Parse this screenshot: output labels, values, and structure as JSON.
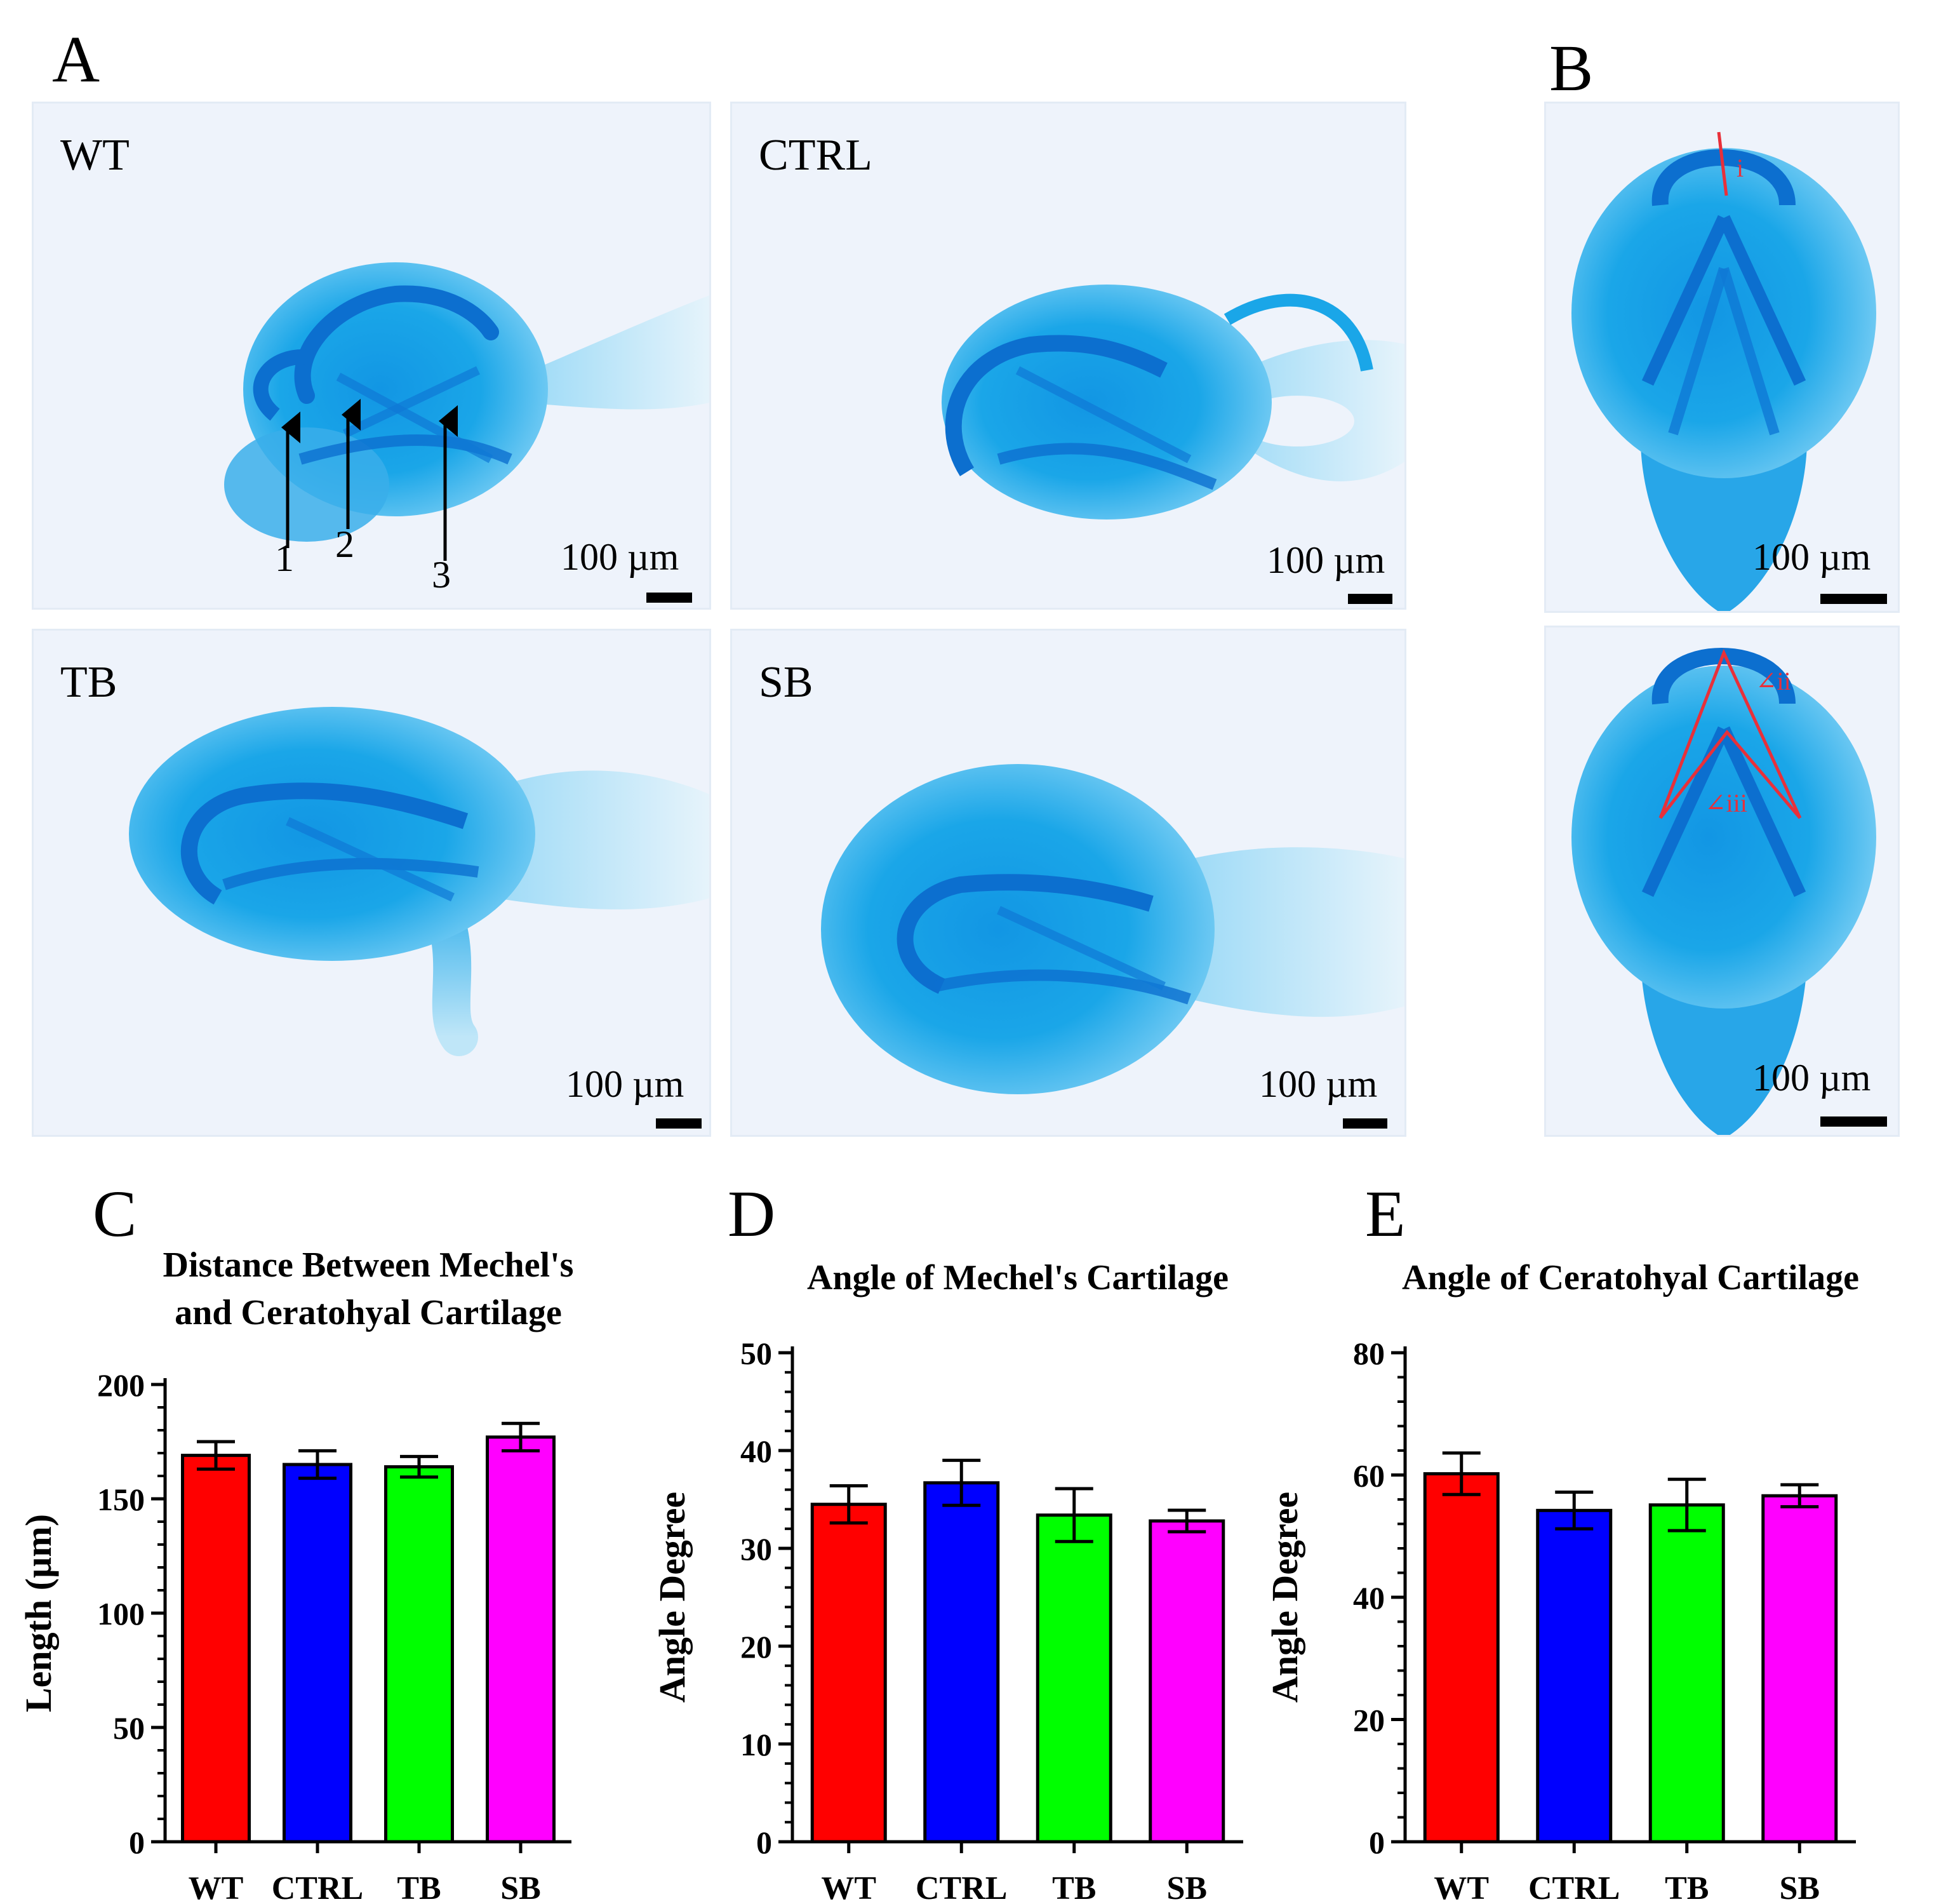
{
  "panels": {
    "A": "A",
    "B": "B",
    "C": "C",
    "D": "D",
    "E": "E"
  },
  "photos": {
    "wt": {
      "label": "WT",
      "scale": "100 µm"
    },
    "ctrl": {
      "label": "CTRL",
      "scale": "100 µm"
    },
    "tb": {
      "label": "TB",
      "scale": "100 µm"
    },
    "sb": {
      "label": "SB",
      "scale": "100 µm"
    },
    "b_top": {
      "scale": "100 µm",
      "mark": "i"
    },
    "b_bottom": {
      "scale": "100 µm",
      "mark_ii": "∠ii",
      "mark_iii": "∠iii"
    }
  },
  "arrows": [
    "1",
    "2",
    "3"
  ],
  "colors": {
    "cartilage": "#1aa6e8",
    "cartilage_dark": "#0f79d6",
    "WT": "#ff0000",
    "CTRL": "#0000ff",
    "TB": "#00ff00",
    "SB": "#ff00ff",
    "annotation": "#e8303a"
  },
  "chart_data": [
    {
      "id": "C",
      "type": "bar",
      "title": [
        "Distance Between Mechel's",
        "and Ceratohyal Cartilage"
      ],
      "xlabel": "",
      "ylabel": "Length (µm)",
      "categories": [
        "WT",
        "CTRL",
        "TB",
        "SB"
      ],
      "values": [
        169,
        165,
        164,
        177
      ],
      "errors": [
        6,
        6,
        4.5,
        6
      ],
      "ylim": [
        0,
        200
      ],
      "yticks": [
        0,
        50,
        100,
        150,
        200
      ],
      "colors": [
        "#ff0000",
        "#0000ff",
        "#00ff00",
        "#ff00ff"
      ]
    },
    {
      "id": "D",
      "type": "bar",
      "title": [
        "Angle of Mechel's Cartilage"
      ],
      "xlabel": "",
      "ylabel": "Angle Degree",
      "categories": [
        "WT",
        "CTRL",
        "TB",
        "SB"
      ],
      "values": [
        34.5,
        36.7,
        33.4,
        32.8
      ],
      "errors": [
        1.9,
        2.3,
        2.7,
        1.1
      ],
      "ylim": [
        0,
        50
      ],
      "yticks": [
        0,
        10,
        20,
        30,
        40,
        50
      ],
      "colors": [
        "#ff0000",
        "#0000ff",
        "#00ff00",
        "#ff00ff"
      ]
    },
    {
      "id": "E",
      "type": "bar",
      "title": [
        "Angle of Ceratohyal Cartilage"
      ],
      "xlabel": "",
      "ylabel": "Angle Degree",
      "categories": [
        "WT",
        "CTRL",
        "TB",
        "SB"
      ],
      "values": [
        60.2,
        54.2,
        55.1,
        56.6
      ],
      "errors": [
        3.4,
        3.0,
        4.2,
        1.8
      ],
      "ylim": [
        0,
        80
      ],
      "yticks": [
        0,
        20,
        40,
        60,
        80
      ],
      "colors": [
        "#ff0000",
        "#0000ff",
        "#00ff00",
        "#ff00ff"
      ]
    }
  ]
}
